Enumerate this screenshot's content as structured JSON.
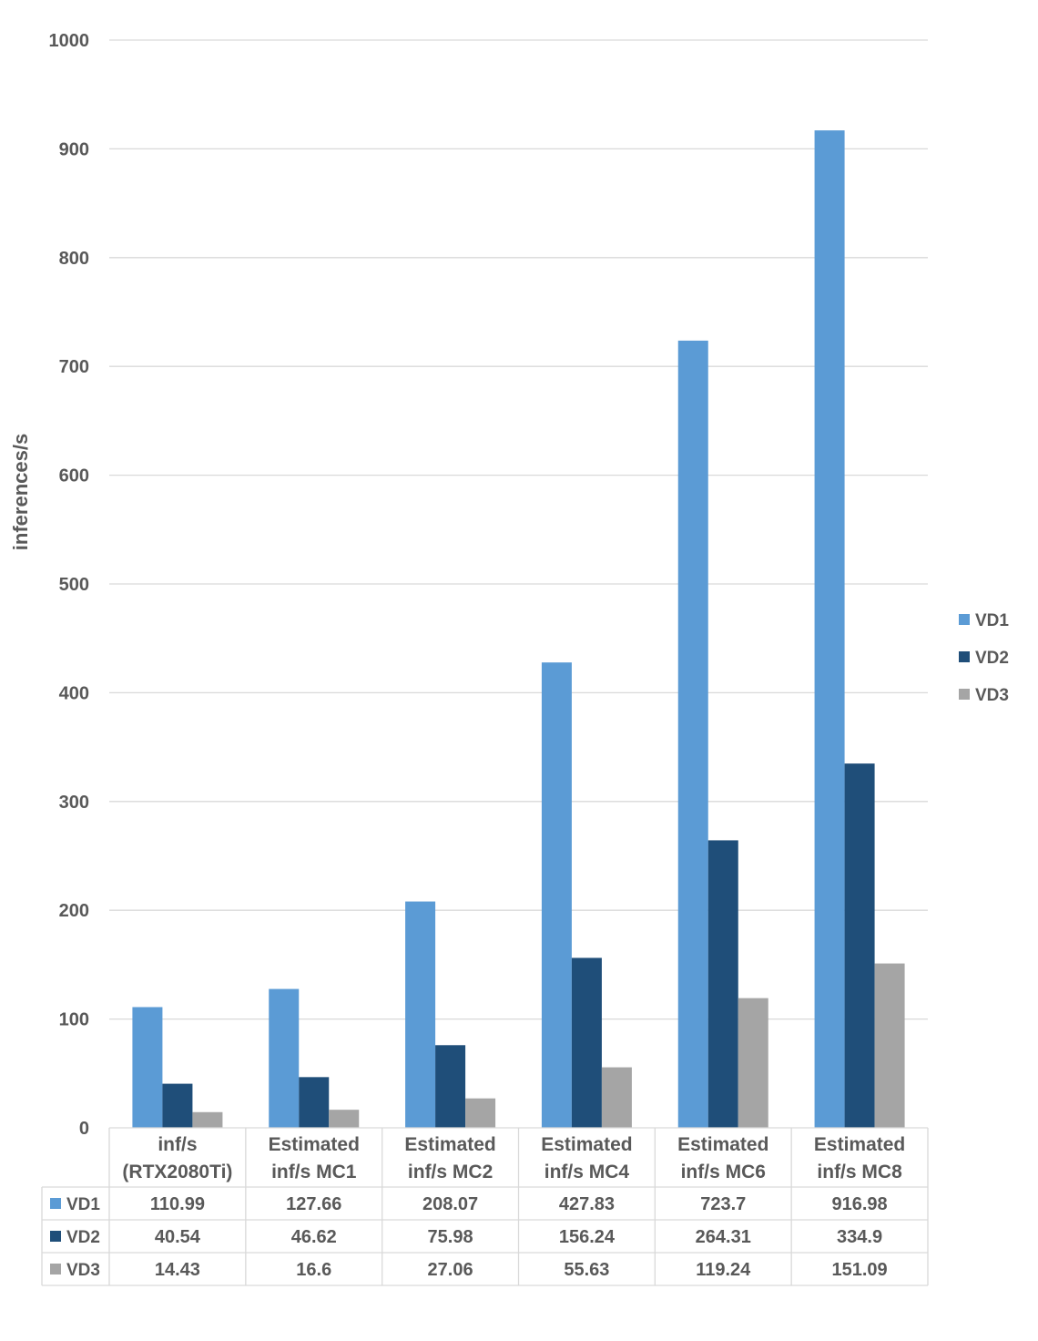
{
  "chart_data": {
    "type": "bar",
    "ylabel": "inferences/s",
    "ylim": [
      0,
      1000
    ],
    "yticks": [
      "0",
      "100",
      "200",
      "300",
      "400",
      "500",
      "600",
      "700",
      "800",
      "900",
      "1000"
    ],
    "categories": [
      [
        "inf/s",
        "(RTX2080Ti)"
      ],
      [
        "Estimated",
        "inf/s MC1"
      ],
      [
        "Estimated",
        "inf/s MC2"
      ],
      [
        "Estimated",
        "inf/s MC4"
      ],
      [
        "Estimated",
        "inf/s MC6"
      ],
      [
        "Estimated",
        "inf/s MC8"
      ]
    ],
    "series": [
      {
        "name": "VD1",
        "color": "#5B9BD5",
        "values": [
          110.99,
          127.66,
          208.07,
          427.83,
          723.7,
          916.98
        ],
        "labels": [
          "110.99",
          "127.66",
          "208.07",
          "427.83",
          "723.7",
          "916.98"
        ]
      },
      {
        "name": "VD2",
        "color": "#1F4E79",
        "values": [
          40.54,
          46.62,
          75.98,
          156.24,
          264.31,
          334.9
        ],
        "labels": [
          "40.54",
          "46.62",
          "75.98",
          "156.24",
          "264.31",
          "334.9"
        ]
      },
      {
        "name": "VD3",
        "color": "#A5A5A5",
        "values": [
          14.43,
          16.6,
          27.06,
          55.63,
          119.24,
          151.09
        ],
        "labels": [
          "14.43",
          "16.6",
          "27.06",
          "55.63",
          "119.24",
          "151.09"
        ]
      }
    ],
    "legend_position": "right",
    "grid": true,
    "data_table": true
  }
}
